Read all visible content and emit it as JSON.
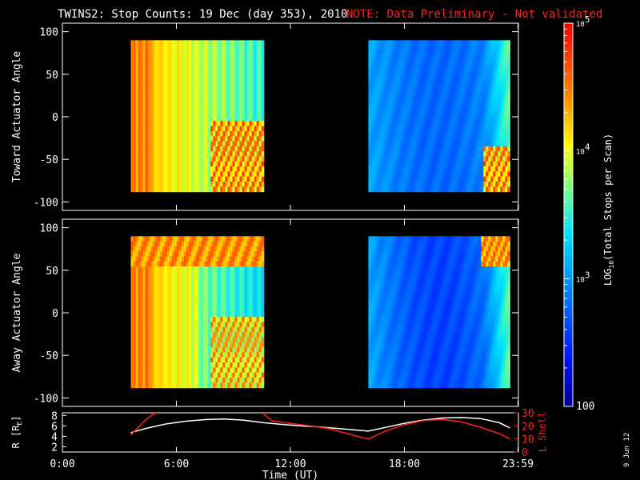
{
  "title": {
    "main": "TWINS2: Stop Counts: 19 Dec (day 353), 2010",
    "note": "NOTE: Data Preliminary - Not validated"
  },
  "colors": {
    "background": "#000000",
    "axes": "#ffffff",
    "note": "#ff2020",
    "radius_line": "#ffffff",
    "lshell_line": "#ff2020"
  },
  "stamp": "9 Jun 12",
  "chart_data": [
    {
      "type": "heatmap",
      "ylabel": "Toward Actuator Angle",
      "ylim": [
        -110,
        110
      ],
      "yticks": [
        100,
        50,
        0,
        -50,
        -100
      ],
      "xlim": [
        0,
        24
      ],
      "segments": [
        {
          "start": 3.6,
          "end": 10.6
        },
        {
          "start": 16.1,
          "end": 23.55
        }
      ],
      "angle_range": [
        -88,
        90
      ]
    },
    {
      "type": "heatmap",
      "ylabel": "Away Actuator Angle",
      "ylim": [
        -110,
        110
      ],
      "yticks": [
        100,
        50,
        0,
        -50,
        -100
      ],
      "xlim": [
        0,
        24
      ],
      "segments": [
        {
          "start": 3.6,
          "end": 10.6
        },
        {
          "start": 16.1,
          "end": 23.55
        }
      ],
      "angle_range": [
        -88,
        90
      ]
    },
    {
      "type": "line",
      "xlabel": "Time (UT)",
      "xticks": [
        "0:00",
        "6:00",
        "12:00",
        "18:00",
        "23:59"
      ],
      "xtick_hours": [
        0,
        6,
        12,
        18,
        23.98
      ],
      "xlim": [
        0,
        24
      ],
      "y_left": {
        "label": "R [R",
        "label_sub": "E",
        "label_end": "]",
        "ticks": [
          8,
          6,
          4,
          2
        ],
        "ylim": [
          1,
          8.5
        ]
      },
      "y_right": {
        "label": "L Shell",
        "ticks": [
          30,
          20,
          10,
          0
        ],
        "ylim": [
          0,
          30
        ]
      },
      "series": [
        {
          "axis": "left",
          "x": [
            3.6,
            4.5,
            5.5,
            6.5,
            7.5,
            8.5,
            9.5,
            10.6,
            11.5,
            12.5,
            13.5,
            14.5,
            15.5,
            16.1,
            17.0,
            18.0,
            19.0,
            20.0,
            21.0,
            22.0,
            23.0,
            23.55
          ],
          "y": [
            4.7,
            5.6,
            6.4,
            6.9,
            7.2,
            7.3,
            7.1,
            6.6,
            6.3,
            6.0,
            5.8,
            5.5,
            5.2,
            5.0,
            5.7,
            6.5,
            7.1,
            7.5,
            7.6,
            7.4,
            6.6,
            5.6
          ]
        },
        {
          "axis": "right",
          "x": [
            3.6,
            4.4,
            5.2,
            10.5,
            10.6,
            11.0,
            12.0,
            13.0,
            14.0,
            15.0,
            16.1,
            17.0,
            18.0,
            19.0,
            20.0,
            21.0,
            22.0,
            23.0,
            23.55
          ],
          "y": [
            13,
            25,
            33,
            33,
            29,
            24,
            22,
            20,
            18,
            14,
            10,
            16,
            21,
            24,
            25,
            23,
            19,
            14,
            10
          ]
        }
      ]
    },
    {
      "type": "heatmap",
      "colorbar": true,
      "label": "LOG",
      "label_sub": "10",
      "label_end": "(Total Stops per Scan)",
      "tick_labels": [
        {
          "base": "10",
          "exp": "5",
          "value": 100000
        },
        {
          "base": "10",
          "exp": "4",
          "value": 10000
        },
        {
          "base": "10",
          "exp": "3",
          "value": 1000
        },
        {
          "base": "100",
          "exp": "",
          "value": 100
        }
      ],
      "scale": "log",
      "range": [
        100,
        100000
      ]
    }
  ]
}
